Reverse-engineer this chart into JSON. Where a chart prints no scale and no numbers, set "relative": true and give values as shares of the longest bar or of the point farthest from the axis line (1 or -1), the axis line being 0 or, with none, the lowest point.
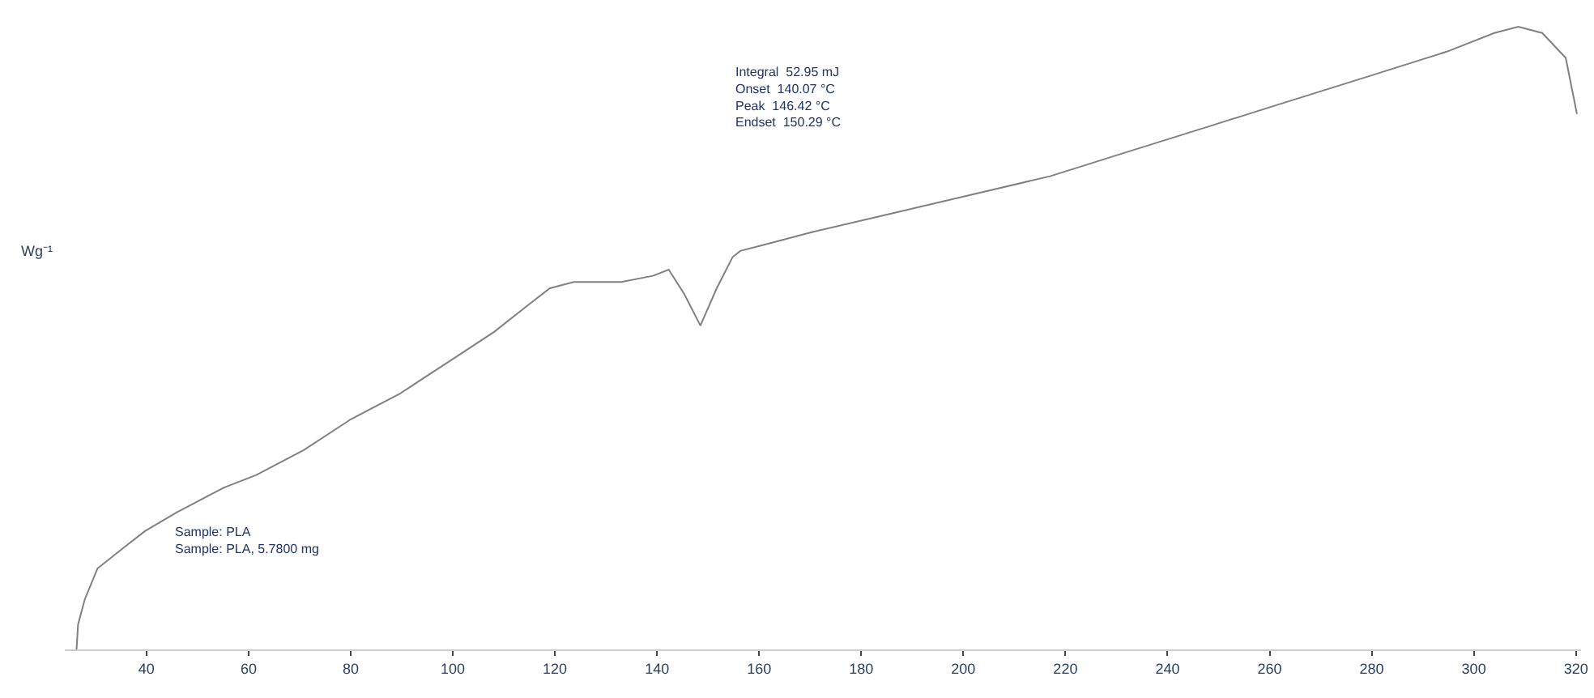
{
  "chart_data": {
    "type": "line",
    "relative": true,
    "ylabel": "Wg⁻¹",
    "x": [
      26.3,
      26.6,
      27.9,
      30.4,
      35.0,
      39.7,
      45.9,
      55.2,
      61.5,
      70.8,
      80.1,
      89.5,
      98.8,
      108.1,
      114.3,
      119.0,
      123.7,
      133.0,
      139.2,
      142.3,
      145.4,
      148.5,
      151.7,
      154.8,
      156.3,
      161.0,
      170.3,
      185.9,
      201.4,
      217.0,
      232.5,
      248.1,
      263.6,
      279.2,
      294.7,
      304.0,
      308.7,
      313.4,
      318.0,
      320.2
    ],
    "series": [
      {
        "color": "#808080",
        "values": [
          0,
          0.04,
          0.08,
          0.13,
          0.16,
          0.19,
          0.22,
          0.26,
          0.28,
          0.32,
          0.37,
          0.41,
          0.46,
          0.51,
          0.55,
          0.58,
          0.59,
          0.59,
          0.6,
          0.61,
          0.57,
          0.52,
          0.58,
          0.63,
          0.64,
          0.65,
          0.67,
          0.7,
          0.73,
          0.76,
          0.8,
          0.84,
          0.88,
          0.92,
          0.96,
          0.99,
          1.0,
          0.99,
          0.95,
          0.86
        ]
      }
    ],
    "xlim": [
      24,
      321
    ],
    "xticks": [
      40,
      60,
      80,
      100,
      120,
      140,
      160,
      180,
      200,
      220,
      240,
      260,
      280,
      300,
      320
    ],
    "annotations": [
      "Integral  52.95 mJ\nOnset  140.07 °C\nPeak  146.42 °C\nEndset  150.29 °C",
      "Sample: PLA\nSample: PLA, 5.7800 mg"
    ],
    "marker": "none",
    "line_style": "solid"
  }
}
